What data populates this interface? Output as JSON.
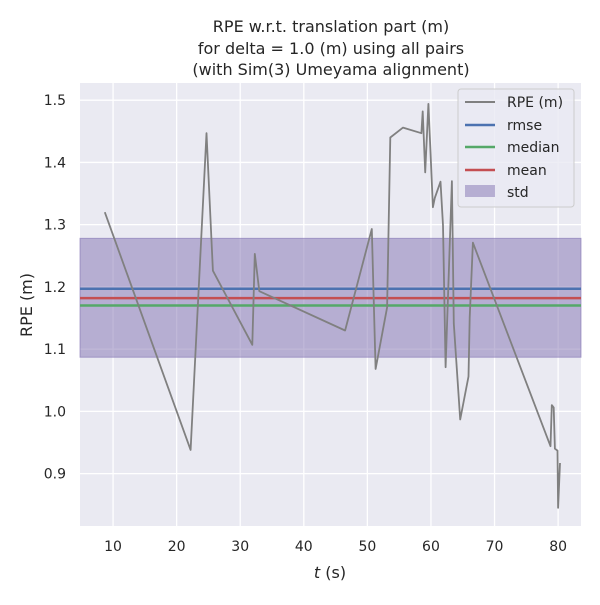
{
  "chart_data": {
    "type": "line",
    "title": [
      "RPE w.r.t. translation part (m)",
      "for delta = 1.0 (m) using all pairs",
      "(with Sim(3) Umeyama alignment)"
    ],
    "xlabel_italic": "t",
    "xlabel_unit": " (s)",
    "ylabel": "RPE (m)",
    "xlim": [
      4.8,
      83.6
    ],
    "ylim": [
      0.8158,
      1.5276
    ],
    "xticks": [
      10,
      20,
      30,
      40,
      50,
      60,
      70,
      80
    ],
    "yticks": [
      0.9,
      1.0,
      1.1,
      1.2,
      1.3,
      1.4,
      1.5
    ],
    "ytick_labels": [
      "0.9",
      "1.0",
      "1.1",
      "1.2",
      "1.3",
      "1.4",
      "1.5"
    ],
    "grid": true,
    "legend_position": "top-right",
    "series": [
      {
        "name": "RPE (m)",
        "color": "#808080",
        "x": [
          8.7,
          22.2,
          24.7,
          25.7,
          31.9,
          32.3,
          33.0,
          46.5,
          50.7,
          51.3,
          53.1,
          53.6,
          55.6,
          58.5,
          58.7,
          59.1,
          59.6,
          60.3,
          60.6,
          61.5,
          61.9,
          62.3,
          63.3,
          63.6,
          64.6,
          65.9,
          66.1,
          66.6,
          78.8,
          79.0,
          79.3,
          79.5,
          79.9,
          80.0,
          80.3
        ],
        "y": [
          1.32,
          0.938,
          1.447,
          1.226,
          1.107,
          1.253,
          1.193,
          1.13,
          1.293,
          1.068,
          1.167,
          1.44,
          1.456,
          1.447,
          1.482,
          1.384,
          1.494,
          1.328,
          1.343,
          1.369,
          1.299,
          1.071,
          1.37,
          1.141,
          0.987,
          1.056,
          1.151,
          1.271,
          0.944,
          1.01,
          1.006,
          0.94,
          0.937,
          0.845,
          0.917
        ]
      }
    ],
    "stats": {
      "rmse": {
        "value": 1.197,
        "color": "#4c72b0"
      },
      "median": {
        "value": 1.17,
        "color": "#55a868"
      },
      "mean": {
        "value": 1.182,
        "color": "#c44e52"
      },
      "std": {
        "low": 1.087,
        "high": 1.278,
        "color": "#8172b2"
      }
    },
    "legend": [
      "RPE (m)",
      "rmse",
      "median",
      "mean",
      "std"
    ]
  }
}
